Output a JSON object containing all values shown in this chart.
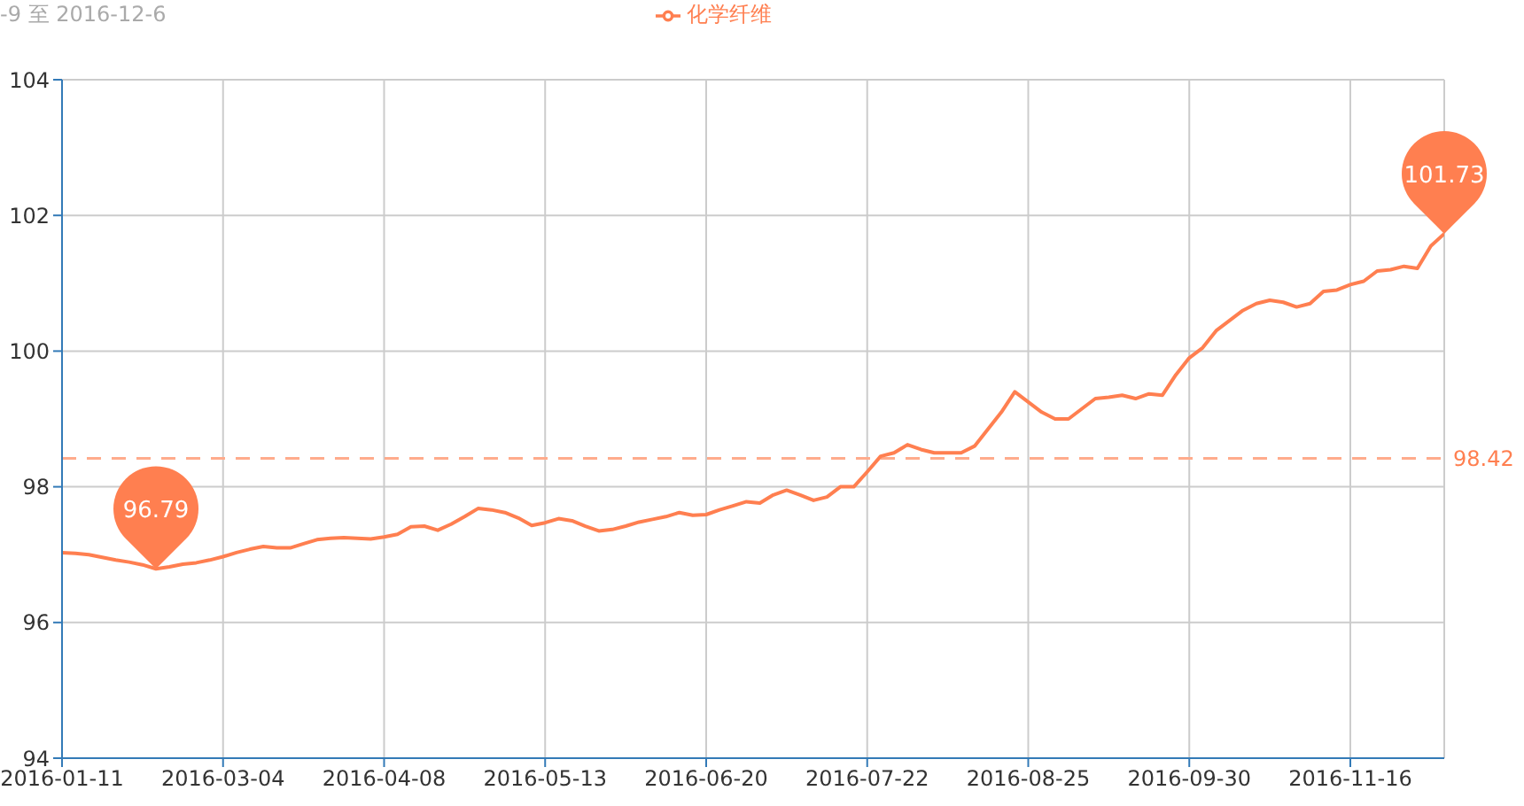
{
  "chart_data": {
    "type": "line",
    "title": "-9 至 2016-12-6",
    "categories": [
      "2016-01-11",
      null,
      null,
      null,
      null,
      null,
      null,
      null,
      null,
      null,
      null,
      null,
      "2016-03-04",
      null,
      null,
      null,
      null,
      null,
      null,
      null,
      null,
      null,
      null,
      null,
      "2016-04-08",
      null,
      null,
      null,
      null,
      null,
      null,
      null,
      null,
      null,
      null,
      null,
      "2016-05-13",
      null,
      null,
      null,
      null,
      null,
      null,
      null,
      null,
      null,
      null,
      null,
      "2016-06-20",
      null,
      null,
      null,
      null,
      null,
      null,
      null,
      null,
      null,
      null,
      null,
      "2016-07-22",
      null,
      null,
      null,
      null,
      null,
      null,
      null,
      null,
      null,
      null,
      null,
      "2016-08-25",
      null,
      null,
      null,
      null,
      null,
      null,
      null,
      null,
      null,
      null,
      null,
      "2016-09-30",
      null,
      null,
      null,
      null,
      null,
      null,
      null,
      null,
      null,
      null,
      null,
      "2016-11-16",
      null,
      null,
      null,
      null,
      null,
      null,
      null
    ],
    "series": [
      {
        "name": "化学纤维",
        "color": "#ff7f50",
        "values": [
          97.03,
          97.02,
          97.0,
          96.96,
          96.92,
          96.89,
          96.85,
          96.79,
          96.82,
          96.86,
          96.88,
          96.92,
          96.97,
          97.03,
          97.08,
          97.12,
          97.1,
          97.1,
          97.16,
          97.22,
          97.24,
          97.25,
          97.24,
          97.23,
          97.26,
          97.3,
          97.41,
          97.42,
          97.36,
          97.45,
          97.56,
          97.68,
          97.66,
          97.62,
          97.54,
          97.43,
          97.47,
          97.53,
          97.5,
          97.42,
          97.35,
          97.37,
          97.42,
          97.48,
          97.52,
          97.56,
          97.62,
          97.58,
          97.59,
          97.66,
          97.72,
          97.78,
          97.76,
          97.88,
          97.95,
          97.88,
          97.8,
          97.85,
          98.0,
          98.0,
          98.22,
          98.45,
          98.5,
          98.62,
          98.55,
          98.5,
          98.5,
          98.5,
          98.6,
          98.85,
          99.1,
          99.4,
          99.25,
          99.1,
          99.0,
          99.0,
          99.15,
          99.3,
          99.32,
          99.35,
          99.3,
          99.37,
          99.35,
          99.65,
          99.9,
          100.05,
          100.3,
          100.45,
          100.6,
          100.7,
          100.75,
          100.72,
          100.65,
          100.7,
          100.88,
          100.9,
          100.98,
          101.03,
          101.18,
          101.2,
          101.25,
          101.22,
          101.55,
          101.73
        ]
      }
    ],
    "ylim": [
      94,
      104
    ],
    "yticks": [
      94,
      96,
      98,
      100,
      102,
      104
    ],
    "grid": true,
    "legend": "top",
    "marker": "none",
    "line_style": "solid",
    "ref_lines": [
      {
        "axis": "y",
        "value": 98.42,
        "label": "98.42",
        "color": "#ffab8c",
        "line_style": "dashed"
      }
    ],
    "annotations": [
      {
        "text": "96.79",
        "y": 96.79
      },
      {
        "text": "101.73",
        "y": 101.73
      }
    ]
  }
}
